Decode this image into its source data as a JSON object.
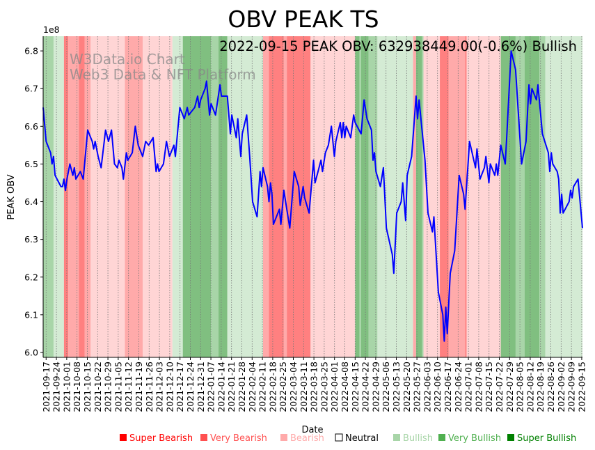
{
  "chart_data": {
    "type": "line",
    "title": "OBV PEAK TS",
    "annotation": "2022-09-15 PEAK OBV: 632938449.00(-0.6%) Bullish",
    "watermark": [
      "W3Data.io Chart",
      "Web3 Data & NFT Platform"
    ],
    "xlabel": "Date",
    "ylabel": "PEAK OBV",
    "y_scale_label": "1e8",
    "x_start_date": "2021-09-17",
    "x_unit": "days since start",
    "xlim": [
      0,
      363
    ],
    "ylim": [
      5.987,
      6.839
    ],
    "y_ticks": [
      6.0,
      6.1,
      6.2,
      6.3,
      6.4,
      6.5,
      6.6,
      6.7,
      6.8
    ],
    "y_tick_labels": [
      "6.0",
      "6.1",
      "6.2",
      "6.3",
      "6.4",
      "6.5",
      "6.6",
      "6.7",
      "6.8"
    ],
    "x_tick_labels": [
      "2021-09-17",
      "2021-09-24",
      "2021-10-01",
      "2021-10-08",
      "2021-10-15",
      "2021-10-22",
      "2021-10-29",
      "2021-11-05",
      "2021-11-12",
      "2021-11-19",
      "2021-11-26",
      "2021-12-03",
      "2021-12-10",
      "2021-12-17",
      "2021-12-24",
      "2021-12-31",
      "2022-01-07",
      "2022-01-14",
      "2022-01-21",
      "2022-01-28",
      "2022-02-04",
      "2022-02-11",
      "2022-02-18",
      "2022-02-25",
      "2022-03-04",
      "2022-03-11",
      "2022-03-18",
      "2022-03-25",
      "2022-04-01",
      "2022-04-08",
      "2022-04-15",
      "2022-04-22",
      "2022-04-29",
      "2022-05-06",
      "2022-05-13",
      "2022-05-20",
      "2022-05-27",
      "2022-06-03",
      "2022-06-10",
      "2022-06-17",
      "2022-06-24",
      "2022-07-01",
      "2022-07-08",
      "2022-07-15",
      "2022-07-22",
      "2022-07-29",
      "2022-08-05",
      "2022-08-12",
      "2022-08-19",
      "2022-08-26",
      "2022-09-02",
      "2022-09-09",
      "2022-09-15"
    ],
    "x_tick_day_range": [
      2,
      362.5
    ],
    "grid": "vertical dotted",
    "legend_placement": "bottom",
    "series": [
      {
        "name": "PEAK OBV (1e8)",
        "color": "#0000ff",
        "points": [
          [
            0,
            6.65
          ],
          [
            2,
            6.56
          ],
          [
            5,
            6.53
          ],
          [
            6,
            6.5
          ],
          [
            7,
            6.52
          ],
          [
            8,
            6.47
          ],
          [
            12,
            6.44
          ],
          [
            13,
            6.44
          ],
          [
            14,
            6.46
          ],
          [
            15,
            6.43
          ],
          [
            16,
            6.46
          ],
          [
            18,
            6.5
          ],
          [
            20,
            6.47
          ],
          [
            21,
            6.49
          ],
          [
            22,
            6.46
          ],
          [
            25,
            6.48
          ],
          [
            27,
            6.46
          ],
          [
            30,
            6.59
          ],
          [
            33,
            6.56
          ],
          [
            34,
            6.54
          ],
          [
            35,
            6.56
          ],
          [
            37,
            6.52
          ],
          [
            39,
            6.49
          ],
          [
            42,
            6.59
          ],
          [
            44,
            6.56
          ],
          [
            46,
            6.59
          ],
          [
            48,
            6.5
          ],
          [
            50,
            6.49
          ],
          [
            51,
            6.51
          ],
          [
            53,
            6.49
          ],
          [
            54,
            6.46
          ],
          [
            56,
            6.53
          ],
          [
            57,
            6.51
          ],
          [
            60,
            6.53
          ],
          [
            62,
            6.6
          ],
          [
            64,
            6.55
          ],
          [
            67,
            6.52
          ],
          [
            69,
            6.56
          ],
          [
            71,
            6.55
          ],
          [
            74,
            6.57
          ],
          [
            76,
            6.48
          ],
          [
            77,
            6.5
          ],
          [
            78,
            6.48
          ],
          [
            81,
            6.5
          ],
          [
            83,
            6.56
          ],
          [
            85,
            6.52
          ],
          [
            88,
            6.55
          ],
          [
            89,
            6.52
          ],
          [
            92,
            6.65
          ],
          [
            95,
            6.62
          ],
          [
            97,
            6.65
          ],
          [
            98,
            6.63
          ],
          [
            102,
            6.65
          ],
          [
            104,
            6.68
          ],
          [
            105,
            6.65
          ],
          [
            106,
            6.67
          ],
          [
            109,
            6.7
          ],
          [
            110,
            6.72
          ],
          [
            112,
            6.63
          ],
          [
            113,
            6.66
          ],
          [
            116,
            6.63
          ],
          [
            119,
            6.71
          ],
          [
            120,
            6.68
          ],
          [
            124,
            6.68
          ],
          [
            126,
            6.58
          ],
          [
            127,
            6.63
          ],
          [
            130,
            6.57
          ],
          [
            131,
            6.62
          ],
          [
            133,
            6.52
          ],
          [
            134,
            6.58
          ],
          [
            137,
            6.63
          ],
          [
            139,
            6.52
          ],
          [
            141,
            6.4
          ],
          [
            144,
            6.36
          ],
          [
            146,
            6.48
          ],
          [
            147,
            6.44
          ],
          [
            148,
            6.49
          ],
          [
            151,
            6.44
          ],
          [
            152,
            6.4
          ],
          [
            153,
            6.45
          ],
          [
            154,
            6.42
          ],
          [
            155,
            6.34
          ],
          [
            159,
            6.38
          ],
          [
            160,
            6.34
          ],
          [
            162,
            6.43
          ],
          [
            164,
            6.38
          ],
          [
            166,
            6.33
          ],
          [
            169,
            6.48
          ],
          [
            172,
            6.44
          ],
          [
            173,
            6.39
          ],
          [
            175,
            6.44
          ],
          [
            176,
            6.41
          ],
          [
            179,
            6.37
          ],
          [
            182,
            6.51
          ],
          [
            183,
            6.45
          ],
          [
            185,
            6.48
          ],
          [
            187,
            6.51
          ],
          [
            188,
            6.48
          ],
          [
            190,
            6.53
          ],
          [
            192,
            6.55
          ],
          [
            194,
            6.6
          ],
          [
            196,
            6.52
          ],
          [
            197,
            6.56
          ],
          [
            200,
            6.61
          ],
          [
            201,
            6.57
          ],
          [
            202,
            6.61
          ],
          [
            203,
            6.57
          ],
          [
            204,
            6.6
          ],
          [
            207,
            6.57
          ],
          [
            209,
            6.63
          ],
          [
            210,
            6.61
          ],
          [
            214,
            6.58
          ],
          [
            216,
            6.67
          ],
          [
            218,
            6.62
          ],
          [
            221,
            6.59
          ],
          [
            222,
            6.51
          ],
          [
            223,
            6.53
          ],
          [
            224,
            6.48
          ],
          [
            227,
            6.44
          ],
          [
            229,
            6.49
          ],
          [
            231,
            6.33
          ],
          [
            235,
            6.26
          ],
          [
            236,
            6.21
          ],
          [
            238,
            6.37
          ],
          [
            241,
            6.4
          ],
          [
            242,
            6.45
          ],
          [
            244,
            6.35
          ],
          [
            245,
            6.47
          ],
          [
            248,
            6.52
          ],
          [
            251,
            6.68
          ],
          [
            252,
            6.62
          ],
          [
            253,
            6.67
          ],
          [
            257,
            6.51
          ],
          [
            259,
            6.37
          ],
          [
            262,
            6.32
          ],
          [
            263,
            6.36
          ],
          [
            266,
            6.16
          ],
          [
            269,
            6.1
          ],
          [
            270,
            6.03
          ],
          [
            271,
            6.12
          ],
          [
            272,
            6.05
          ],
          [
            274,
            6.21
          ],
          [
            277,
            6.27
          ],
          [
            280,
            6.47
          ],
          [
            283,
            6.42
          ],
          [
            284,
            6.38
          ],
          [
            287,
            6.56
          ],
          [
            291,
            6.49
          ],
          [
            292,
            6.54
          ],
          [
            294,
            6.46
          ],
          [
            297,
            6.49
          ],
          [
            298,
            6.52
          ],
          [
            300,
            6.45
          ],
          [
            301,
            6.5
          ],
          [
            304,
            6.47
          ],
          [
            305,
            6.5
          ],
          [
            306,
            6.47
          ],
          [
            308,
            6.55
          ],
          [
            311,
            6.5
          ],
          [
            312,
            6.57
          ],
          [
            315,
            6.8
          ],
          [
            318,
            6.75
          ],
          [
            322,
            6.5
          ],
          [
            325,
            6.56
          ],
          [
            327,
            6.71
          ],
          [
            328,
            6.66
          ],
          [
            329,
            6.7
          ],
          [
            332,
            6.67
          ],
          [
            333,
            6.71
          ],
          [
            336,
            6.58
          ],
          [
            340,
            6.53
          ],
          [
            341,
            6.48
          ],
          [
            342,
            6.53
          ],
          [
            343,
            6.5
          ],
          [
            346,
            6.48
          ],
          [
            347,
            6.46
          ],
          [
            348,
            6.37
          ],
          [
            349,
            6.42
          ],
          [
            350,
            6.37
          ],
          [
            354,
            6.4
          ],
          [
            355,
            6.43
          ],
          [
            356,
            6.41
          ],
          [
            357,
            6.44
          ],
          [
            360,
            6.46
          ],
          [
            363,
            6.33
          ]
        ]
      }
    ],
    "bands": [
      [
        0,
        7,
        "very_bullish"
      ],
      [
        7,
        14,
        "bullish"
      ],
      [
        14,
        17,
        "super_bearish"
      ],
      [
        17,
        24,
        "very_bearish"
      ],
      [
        24,
        28,
        "super_bearish"
      ],
      [
        28,
        32,
        "very_bearish"
      ],
      [
        32,
        55,
        "bearish"
      ],
      [
        55,
        67,
        "very_bearish"
      ],
      [
        67,
        87,
        "bearish"
      ],
      [
        87,
        94,
        "bullish"
      ],
      [
        94,
        113,
        "super_bullish"
      ],
      [
        113,
        118,
        "very_bullish"
      ],
      [
        118,
        124,
        "super_bullish"
      ],
      [
        124,
        148,
        "bullish"
      ],
      [
        148,
        152,
        "very_bearish"
      ],
      [
        152,
        162,
        "super_bearish"
      ],
      [
        162,
        164,
        "very_bearish"
      ],
      [
        164,
        180,
        "super_bearish"
      ],
      [
        180,
        210,
        "bearish"
      ],
      [
        210,
        213,
        "super_bullish"
      ],
      [
        213,
        214,
        "very_bullish"
      ],
      [
        214,
        219,
        "super_bullish"
      ],
      [
        219,
        225,
        "very_bullish"
      ],
      [
        225,
        249,
        "bullish"
      ],
      [
        249,
        251,
        "very_bearish"
      ],
      [
        251,
        255,
        "super_bullish"
      ],
      [
        255,
        256,
        "very_bullish"
      ],
      [
        256,
        267,
        "bearish"
      ],
      [
        267,
        273,
        "super_bearish"
      ],
      [
        273,
        284,
        "very_bearish"
      ],
      [
        284,
        285,
        "super_bearish"
      ],
      [
        285,
        308,
        "bearish"
      ],
      [
        308,
        318,
        "super_bullish"
      ],
      [
        318,
        324,
        "very_bullish"
      ],
      [
        324,
        334,
        "super_bullish"
      ],
      [
        334,
        338,
        "very_bullish"
      ],
      [
        338,
        364,
        "bullish"
      ]
    ],
    "band_colors": {
      "super_bearish": "#ff8080",
      "very_bearish": "#ffaaaa",
      "bearish": "#ffd5d5",
      "bullish": "#d4ebd4",
      "very_bullish": "#a8d5a8",
      "super_bullish": "#80bf80"
    },
    "legend": [
      {
        "label": "Super Bearish",
        "color": "#ff0000",
        "text_color": "#ff0000"
      },
      {
        "label": "Very Bearish",
        "color": "#ff5050",
        "text_color": "#ff5050"
      },
      {
        "label": "Bearish",
        "color": "#ffaaaa",
        "text_color": "#ffaaaa"
      },
      {
        "label": "Neutral",
        "color": "#ffffff",
        "text_color": "#000000"
      },
      {
        "label": "Bullish",
        "color": "#a8d5a8",
        "text_color": "#a8d5a8"
      },
      {
        "label": "Very Bullish",
        "color": "#50b050",
        "text_color": "#50b050"
      },
      {
        "label": "Super Bullish",
        "color": "#008000",
        "text_color": "#008000"
      }
    ]
  }
}
